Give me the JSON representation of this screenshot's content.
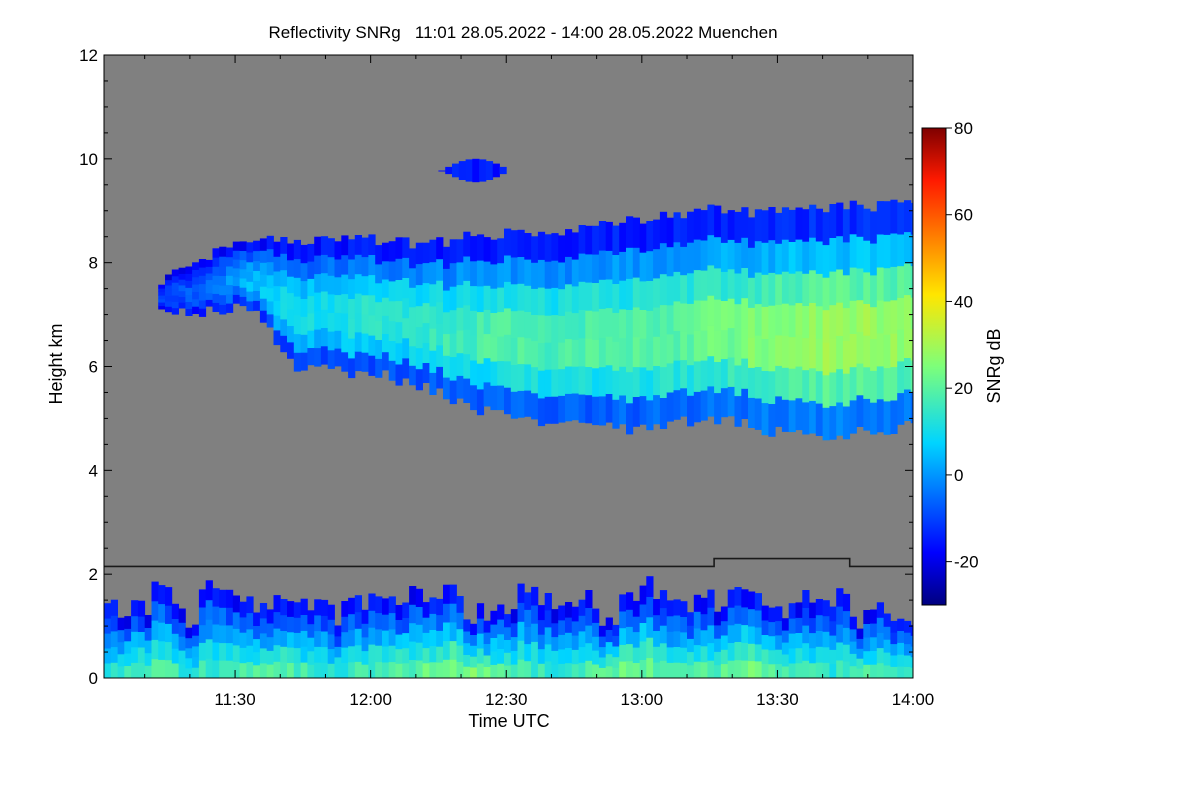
{
  "chart_data": {
    "type": "heatmap",
    "title": "Reflectivity SNRg   11:01 28.05.2022 - 14:00 28.05.2022 Muenchen",
    "xlabel": "Time UTC",
    "ylabel": "Height km",
    "xlim_minutes_utc": [
      661,
      840
    ],
    "ylim_km": [
      0,
      12
    ],
    "x_ticks": [
      {
        "label": "11:30",
        "minutes": 690
      },
      {
        "label": "12:00",
        "minutes": 720
      },
      {
        "label": "12:30",
        "minutes": 750
      },
      {
        "label": "13:00",
        "minutes": 780
      },
      {
        "label": "13:30",
        "minutes": 810
      },
      {
        "label": "14:00",
        "minutes": 840
      }
    ],
    "y_ticks": [
      {
        "label": "0",
        "value": 0
      },
      {
        "label": "2",
        "value": 2
      },
      {
        "label": "4",
        "value": 4
      },
      {
        "label": "6",
        "value": 6
      },
      {
        "label": "8",
        "value": 8
      },
      {
        "label": "10",
        "value": 10
      },
      {
        "label": "12",
        "value": 12
      }
    ],
    "colorbar": {
      "label": "SNRg dB",
      "range_db": [
        -30,
        80
      ],
      "ticks": [
        {
          "label": "-20",
          "value": -20
        },
        {
          "label": "0",
          "value": 0
        },
        {
          "label": "20",
          "value": 20
        },
        {
          "label": "40",
          "value": 40
        },
        {
          "label": "60",
          "value": 60
        },
        {
          "label": "80",
          "value": 80
        }
      ]
    },
    "boundary_layer_height_km": [
      {
        "start_min": 661,
        "end_min": 796,
        "km": 2.15
      },
      {
        "start_min": 796,
        "end_min": 826,
        "km": 2.3
      },
      {
        "start_min": 826,
        "end_min": 840,
        "km": 2.15
      }
    ],
    "upper_cloud": {
      "description": "ice cloud layer",
      "time_range_min": [
        673,
        840
      ],
      "top_km": [
        7.7,
        8.1,
        8.4,
        8.45,
        8.5,
        8.4,
        8.35,
        8.5,
        8.55,
        8.6,
        8.7,
        8.9,
        9.0,
        9.0,
        8.95,
        9.1,
        9.1,
        9.1
      ],
      "base_km": [
        7.0,
        7.05,
        7.2,
        6.0,
        5.9,
        5.85,
        5.6,
        5.2,
        5.0,
        4.9,
        4.85,
        4.75,
        5.0,
        4.95,
        4.7,
        4.7,
        4.75,
        4.9
      ],
      "peak_snr_db": [
        -10,
        -5,
        5,
        10,
        12,
        14,
        16,
        18,
        20,
        18,
        20,
        20,
        22,
        25,
        28,
        30,
        30,
        28
      ]
    },
    "small_cloud_patch": {
      "time_range_min": [
        735,
        750
      ],
      "height_km": [
        9.55,
        10.0
      ],
      "snr_db": -15
    },
    "boundary_layer_echo": {
      "time_range_min": [
        661,
        840
      ],
      "top_km": [
        1.5,
        1.3,
        1.7,
        1.2,
        1.8,
        1.6,
        1.3,
        1.5,
        1.2,
        1.6,
        1.4,
        1.8,
        1.7,
        1.3,
        1.2,
        1.6,
        1.5,
        1.7,
        1.1,
        1.6,
        1.8,
        1.5,
        1.4,
        1.7,
        1.3,
        1.5,
        1.6,
        1.2,
        1.4,
        1.3
      ],
      "peak_snr_db": [
        15,
        18,
        20,
        15,
        18,
        20,
        22,
        18,
        15,
        18,
        20,
        22,
        25,
        28,
        20,
        18,
        15,
        20,
        22,
        25,
        20,
        18,
        22,
        25,
        20,
        18,
        15,
        20,
        18,
        15
      ]
    }
  }
}
